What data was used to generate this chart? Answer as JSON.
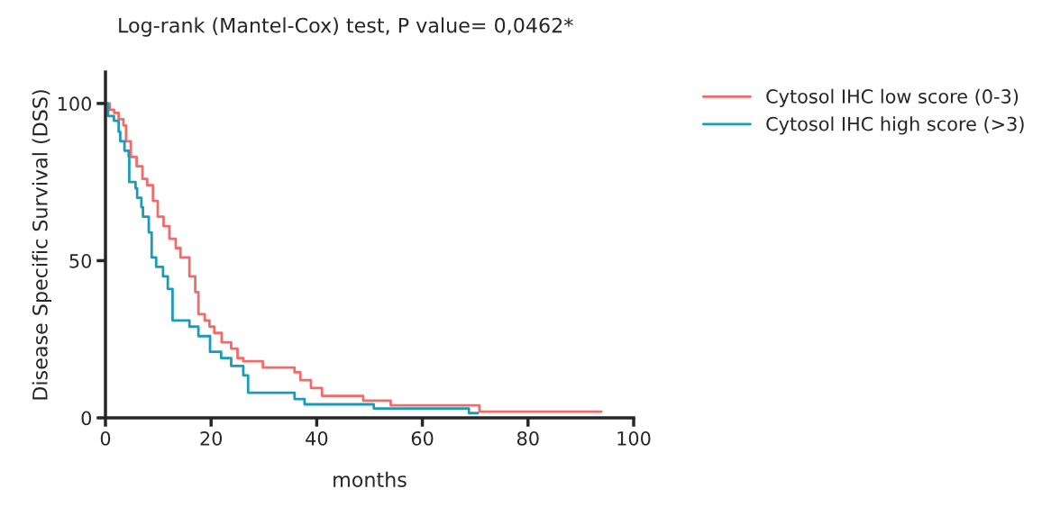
{
  "chart_data": {
    "type": "step",
    "title": "Log-rank (Mantel-Cox) test, P value= 0,0462*",
    "xlabel": "months",
    "ylabel": "Disease Specific Survival (DSS)",
    "series": [
      {
        "name": "Cytosol IHC low score (0-3)",
        "color": "#f26b6b",
        "x": [
          0,
          0.8,
          1.65,
          2.5,
          3.4,
          3.9,
          4.8,
          5.9,
          7,
          7.9,
          9,
          9.9,
          11,
          12.1,
          13.3,
          14.2,
          15.9,
          17,
          17.6,
          18.8,
          19.7,
          20.6,
          22,
          23.8,
          25,
          26.1,
          29.8,
          35.8,
          36.9,
          38.9,
          41,
          48.8,
          54,
          70.8,
          93.9
        ],
        "values": [
          100,
          98,
          97,
          95,
          93,
          88,
          83,
          80,
          76,
          74,
          69,
          64,
          61,
          57,
          54,
          51,
          45,
          40,
          33,
          31,
          29,
          27,
          24,
          22,
          19,
          18,
          16,
          14.5,
          12,
          9.5,
          7,
          5.5,
          4,
          2,
          2
        ]
      },
      {
        "name": "Cytosol IHC high score (>3)",
        "color": "#1a9bb8",
        "x": [
          0,
          0.5,
          1.6,
          2.5,
          2.8,
          3.6,
          4.4,
          4.5,
          5.7,
          6,
          6.8,
          7.1,
          8.2,
          8.75,
          9.6,
          10.9,
          11.8,
          12.7,
          15.9,
          17.6,
          19.8,
          21.9,
          23.8,
          26.1,
          27,
          35.8,
          37.7,
          50.8,
          68.8,
          70.5
        ],
        "values": [
          100,
          96,
          94.5,
          91,
          88,
          85,
          83,
          75,
          73,
          70,
          67,
          64,
          59,
          51,
          48,
          45,
          41,
          31,
          29,
          26,
          21,
          19,
          16.5,
          13.5,
          8,
          6,
          4.3,
          3,
          1.5,
          1.5
        ]
      }
    ],
    "xlim": [
      0,
      100
    ],
    "xticks": [
      0,
      20,
      40,
      60,
      80,
      100
    ],
    "ylim": [
      0,
      110
    ],
    "yticks": [
      0,
      50,
      100
    ],
    "grid": false,
    "legend": "right"
  }
}
